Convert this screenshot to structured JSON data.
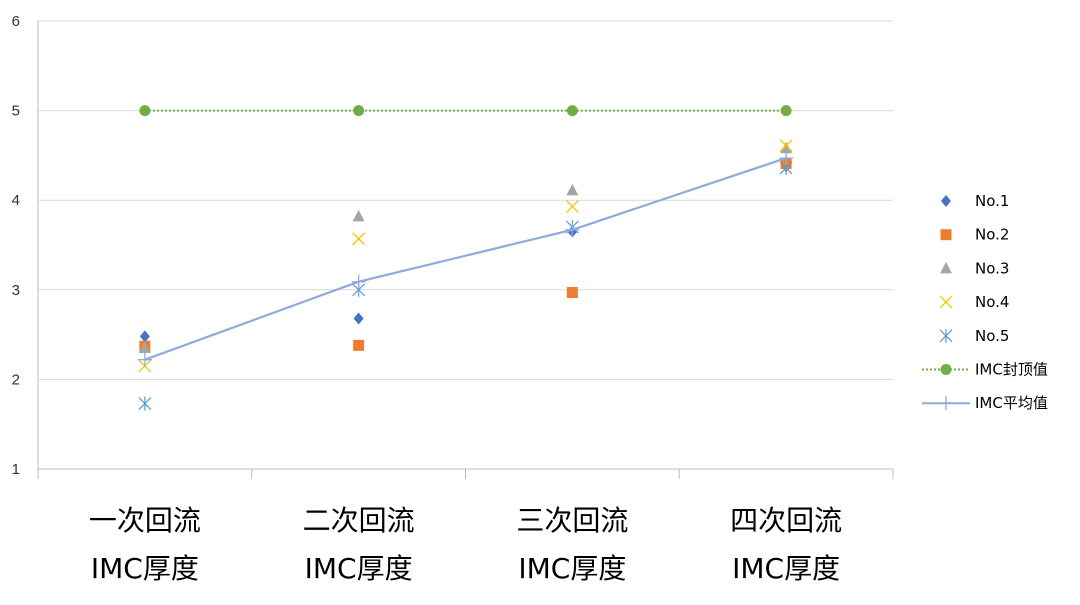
{
  "chart_data": {
    "type": "line",
    "categories": [
      [
        "一次回流",
        "IMC厚度"
      ],
      [
        "二次回流",
        "IMC厚度"
      ],
      [
        "三次回流",
        "IMC厚度"
      ],
      [
        "四次回流",
        "IMC厚度"
      ]
    ],
    "ylim": [
      1,
      6
    ],
    "yticks": [
      "1",
      "2",
      "3",
      "4",
      "5",
      "6"
    ],
    "grid": true,
    "legend_position": "right",
    "series": [
      {
        "name": "No.1",
        "values": [
          2.48,
          2.68,
          3.65,
          4.38
        ],
        "marker": "diamond",
        "line": "none",
        "color": "#4472C4"
      },
      {
        "name": "No.2",
        "values": [
          2.37,
          2.38,
          2.97,
          4.41
        ],
        "marker": "square",
        "line": "none",
        "color": "#ED7D31"
      },
      {
        "name": "No.3",
        "values": [
          2.35,
          3.82,
          4.11,
          4.58
        ],
        "marker": "triangle",
        "line": "none",
        "color": "#A5A5A5"
      },
      {
        "name": "No.4",
        "values": [
          2.15,
          3.57,
          3.93,
          4.61
        ],
        "marker": "x",
        "line": "none",
        "color": "#FFC000"
      },
      {
        "name": "No.5",
        "values": [
          1.73,
          3.0,
          3.7,
          4.36
        ],
        "marker": "asterisk",
        "line": "none",
        "color": "#5B9BD5"
      },
      {
        "name": "IMC封顶值",
        "values": [
          5,
          5,
          5,
          5
        ],
        "marker": "circle",
        "line": "dotted",
        "color": "#70AD47"
      },
      {
        "name": "IMC平均值",
        "values": [
          2.22,
          3.09,
          3.67,
          4.47
        ],
        "marker": "plus",
        "line": "solid",
        "color": "#8FAADC"
      }
    ]
  }
}
